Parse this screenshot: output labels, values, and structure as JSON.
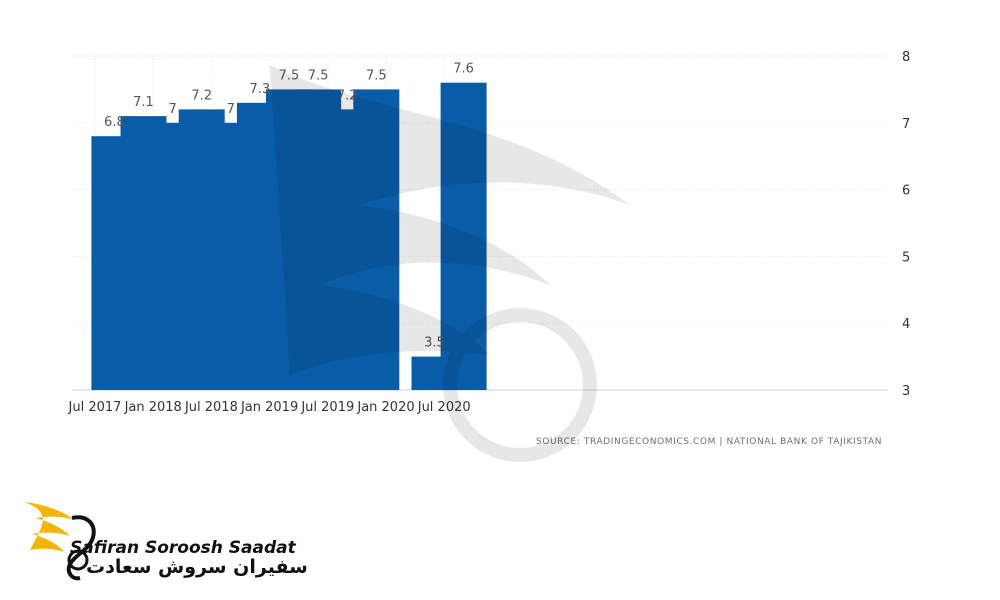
{
  "chart_data": {
    "type": "bar",
    "title": "",
    "xlabel": "",
    "ylabel": "",
    "ylim": [
      3,
      8
    ],
    "y_ticks": [
      "3",
      "4",
      "5",
      "6",
      "7",
      "8"
    ],
    "y_axis_side": "right",
    "grid": true,
    "x_tick_labels": [
      "Jul 2017",
      "Jan 2018",
      "Jul 2018",
      "Jan 2019",
      "Jul 2019",
      "Jan 2020",
      "Jul 2020"
    ],
    "series": [
      {
        "name": "",
        "color": "#0b5ca8",
        "points": [
          {
            "period": "Sep 2017",
            "value": 6.8,
            "label": "6.8"
          },
          {
            "period": "Dec 2017",
            "value": 7.1,
            "label": "7.1"
          },
          {
            "period": "Mar 2018",
            "value": 7,
            "label": "7"
          },
          {
            "period": "Jun 2018",
            "value": 7.2,
            "label": "7.2"
          },
          {
            "period": "Sep 2018",
            "value": 7,
            "label": "7"
          },
          {
            "period": "Dec 2018",
            "value": 7.3,
            "label": "7.3"
          },
          {
            "period": "Mar 2019",
            "value": 7.5,
            "label": "7.5"
          },
          {
            "period": "Jun 2019",
            "value": 7.5,
            "label": "7.5"
          },
          {
            "period": "Sep 2019",
            "value": 7.2,
            "label": "7.2"
          },
          {
            "period": "Dec 2019",
            "value": 7.5,
            "label": "7.5"
          },
          {
            "period": "Jun 2020",
            "value": 3.5,
            "label": "3.5"
          },
          {
            "period": "Sep 2020",
            "value": 7.6,
            "label": "7.6"
          }
        ]
      }
    ]
  },
  "source": "SOURCE: TRADINGECONOMICS.COM | NATIONAL BANK OF TAJIKISTAN",
  "brand": {
    "name_en": "Safiran Soroosh Saadat",
    "name_fa": "سفیران سروش سعادت",
    "accent": "#f5b400",
    "ink": "#111111"
  }
}
